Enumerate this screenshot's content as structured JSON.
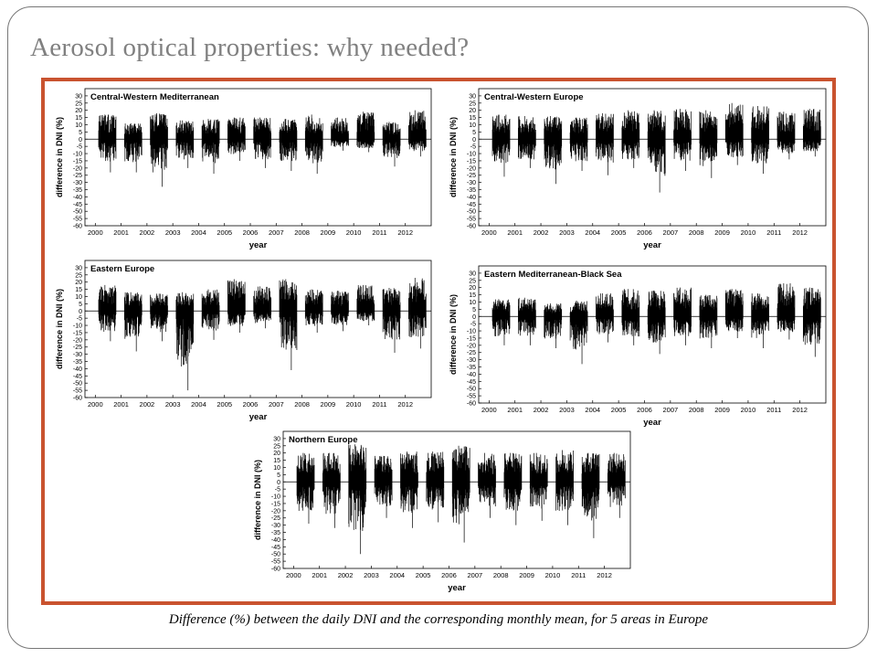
{
  "slide": {
    "title": "Aerosol optical properties: why needed?",
    "caption": "Difference (%) between the daily DNI and the corresponding monthly mean, for 5 areas in Europe",
    "frame_color": "#c9532f"
  },
  "chart_data": [
    {
      "type": "line",
      "title": "Central-Western Mediterranean",
      "xlabel": "year",
      "ylabel": "difference in DNI (%)",
      "xlim": [
        1999.6,
        2013.0
      ],
      "ylim": [
        -60,
        35
      ],
      "x_ticks": [
        2000,
        2001,
        2002,
        2003,
        2004,
        2005,
        2006,
        2007,
        2008,
        2009,
        2010,
        2011,
        2012
      ],
      "y_ticks": [
        30,
        25,
        20,
        15,
        10,
        5,
        0,
        -5,
        -10,
        -15,
        -20,
        -25,
        -30,
        -35,
        -40,
        -45,
        -50,
        -55,
        -60
      ],
      "grid": false,
      "series": [
        {
          "color": "#000000",
          "clusters": [
            {
              "year": 2000,
              "max": 17,
              "min": -23
            },
            {
              "year": 2001,
              "max": 11,
              "min": -23
            },
            {
              "year": 2002,
              "max": 18,
              "min": -33
            },
            {
              "year": 2003,
              "max": 13,
              "min": -20
            },
            {
              "year": 2004,
              "max": 14,
              "min": -24
            },
            {
              "year": 2005,
              "max": 15,
              "min": -15
            },
            {
              "year": 2006,
              "max": 15,
              "min": -20
            },
            {
              "year": 2007,
              "max": 14,
              "min": -22
            },
            {
              "year": 2008,
              "max": 17,
              "min": -24
            },
            {
              "year": 2009,
              "max": 15,
              "min": -8
            },
            {
              "year": 2010,
              "max": 19,
              "min": -9
            },
            {
              "year": 2011,
              "max": 12,
              "min": -19
            },
            {
              "year": 2012,
              "max": 20,
              "min": -12
            }
          ]
        }
      ]
    },
    {
      "type": "line",
      "title": "Central-Western Europe",
      "xlabel": "year",
      "ylabel": "difference in DNI (%)",
      "xlim": [
        1999.6,
        2013.0
      ],
      "ylim": [
        -60,
        35
      ],
      "x_ticks": [
        2000,
        2001,
        2002,
        2003,
        2004,
        2005,
        2006,
        2007,
        2008,
        2009,
        2010,
        2011,
        2012
      ],
      "y_ticks": [
        30,
        25,
        20,
        15,
        10,
        5,
        0,
        -5,
        -10,
        -15,
        -20,
        -25,
        -30,
        -35,
        -40,
        -45,
        -50,
        -55,
        -60
      ],
      "grid": false,
      "series": [
        {
          "color": "#000000",
          "clusters": [
            {
              "year": 2000,
              "max": 17,
              "min": -26
            },
            {
              "year": 2001,
              "max": 16,
              "min": -20
            },
            {
              "year": 2002,
              "max": 16,
              "min": -31
            },
            {
              "year": 2003,
              "max": 15,
              "min": -22
            },
            {
              "year": 2004,
              "max": 18,
              "min": -25
            },
            {
              "year": 2005,
              "max": 20,
              "min": -20
            },
            {
              "year": 2006,
              "max": 20,
              "min": -37
            },
            {
              "year": 2007,
              "max": 21,
              "min": -22
            },
            {
              "year": 2008,
              "max": 20,
              "min": -27
            },
            {
              "year": 2009,
              "max": 25,
              "min": -18
            },
            {
              "year": 2010,
              "max": 23,
              "min": -24
            },
            {
              "year": 2011,
              "max": 19,
              "min": -14
            },
            {
              "year": 2012,
              "max": 21,
              "min": -12
            }
          ]
        }
      ]
    },
    {
      "type": "line",
      "title": "Eastern Europe",
      "xlabel": "year",
      "ylabel": "difference in DNI (%)",
      "xlim": [
        1999.6,
        2013.0
      ],
      "ylim": [
        -60,
        35
      ],
      "x_ticks": [
        2000,
        2001,
        2002,
        2003,
        2004,
        2005,
        2006,
        2007,
        2008,
        2009,
        2010,
        2011,
        2012
      ],
      "y_ticks": [
        30,
        25,
        20,
        15,
        10,
        5,
        0,
        -5,
        -10,
        -15,
        -20,
        -25,
        -30,
        -35,
        -40,
        -45,
        -50,
        -55,
        -60
      ],
      "grid": false,
      "series": [
        {
          "color": "#000000",
          "clusters": [
            {
              "year": 2000,
              "max": 18,
              "min": -21
            },
            {
              "year": 2001,
              "max": 13,
              "min": -28
            },
            {
              "year": 2002,
              "max": 12,
              "min": -21
            },
            {
              "year": 2003,
              "max": 13,
              "min": -55
            },
            {
              "year": 2004,
              "max": 15,
              "min": -20
            },
            {
              "year": 2005,
              "max": 22,
              "min": -15
            },
            {
              "year": 2006,
              "max": 17,
              "min": -12
            },
            {
              "year": 2007,
              "max": 22,
              "min": -41
            },
            {
              "year": 2008,
              "max": 15,
              "min": -15
            },
            {
              "year": 2009,
              "max": 14,
              "min": -14
            },
            {
              "year": 2010,
              "max": 18,
              "min": -10
            },
            {
              "year": 2011,
              "max": 16,
              "min": -29
            },
            {
              "year": 2012,
              "max": 23,
              "min": -26
            }
          ]
        }
      ]
    },
    {
      "type": "line",
      "title": "Eastern Mediterranean-Black Sea",
      "xlabel": "year",
      "ylabel": "difference in DNI (%)",
      "xlim": [
        1999.6,
        2013.0
      ],
      "ylim": [
        -60,
        35
      ],
      "x_ticks": [
        2000,
        2001,
        2002,
        2003,
        2004,
        2005,
        2006,
        2007,
        2008,
        2009,
        2010,
        2011,
        2012
      ],
      "y_ticks": [
        30,
        25,
        20,
        15,
        10,
        5,
        0,
        -5,
        -10,
        -15,
        -20,
        -25,
        -30,
        -35,
        -40,
        -45,
        -50,
        -55,
        -60
      ],
      "grid": false,
      "series": [
        {
          "color": "#000000",
          "clusters": [
            {
              "year": 2000,
              "max": 12,
              "min": -20
            },
            {
              "year": 2001,
              "max": 13,
              "min": -20
            },
            {
              "year": 2002,
              "max": 9,
              "min": -22
            },
            {
              "year": 2003,
              "max": 11,
              "min": -33
            },
            {
              "year": 2004,
              "max": 16,
              "min": -18
            },
            {
              "year": 2005,
              "max": 19,
              "min": -20
            },
            {
              "year": 2006,
              "max": 18,
              "min": -26
            },
            {
              "year": 2007,
              "max": 20,
              "min": -20
            },
            {
              "year": 2008,
              "max": 15,
              "min": -22
            },
            {
              "year": 2009,
              "max": 19,
              "min": -15
            },
            {
              "year": 2010,
              "max": 16,
              "min": -22
            },
            {
              "year": 2011,
              "max": 23,
              "min": -16
            },
            {
              "year": 2012,
              "max": 20,
              "min": -28
            }
          ]
        }
      ]
    },
    {
      "type": "line",
      "title": "Northern Europe",
      "xlabel": "year",
      "ylabel": "difference in DNI (%)",
      "xlim": [
        1999.6,
        2013.0
      ],
      "ylim": [
        -60,
        35
      ],
      "x_ticks": [
        2000,
        2001,
        2002,
        2003,
        2004,
        2005,
        2006,
        2007,
        2008,
        2009,
        2010,
        2011,
        2012
      ],
      "y_ticks": [
        30,
        25,
        20,
        15,
        10,
        5,
        0,
        -5,
        -10,
        -15,
        -20,
        -25,
        -30,
        -35,
        -40,
        -45,
        -50,
        -55,
        -60
      ],
      "grid": false,
      "series": [
        {
          "color": "#000000",
          "clusters": [
            {
              "year": 2000,
              "max": 20,
              "min": -29
            },
            {
              "year": 2001,
              "max": 20,
              "min": -32
            },
            {
              "year": 2002,
              "max": 26,
              "min": -50
            },
            {
              "year": 2003,
              "max": 18,
              "min": -25
            },
            {
              "year": 2004,
              "max": 21,
              "min": -32
            },
            {
              "year": 2005,
              "max": 21,
              "min": -28
            },
            {
              "year": 2006,
              "max": 25,
              "min": -42
            },
            {
              "year": 2007,
              "max": 20,
              "min": -25
            },
            {
              "year": 2008,
              "max": 20,
              "min": -30
            },
            {
              "year": 2009,
              "max": 20,
              "min": -27
            },
            {
              "year": 2010,
              "max": 22,
              "min": -30
            },
            {
              "year": 2011,
              "max": 20,
              "min": -39
            },
            {
              "year": 2012,
              "max": 20,
              "min": -25
            }
          ]
        }
      ]
    }
  ]
}
